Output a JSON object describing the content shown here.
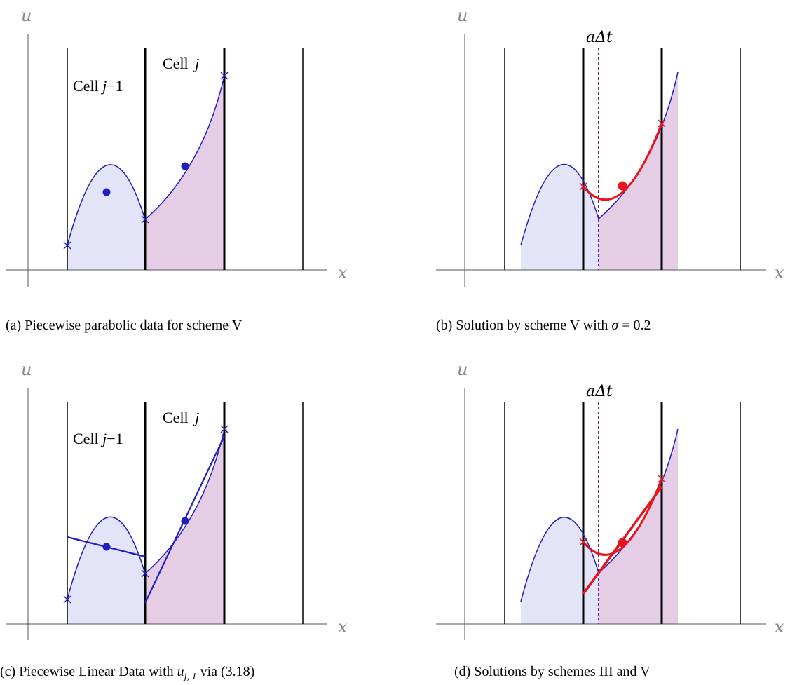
{
  "panels": [
    {
      "id": "a",
      "axis_x": "x",
      "axis_u": "u",
      "caption": "(a) Piecewise parabolic data for scheme V",
      "cell_labels": [
        {
          "text": "Cell ",
          "var": "j",
          "suffix": "−1"
        },
        {
          "text": "Cell ",
          "var": "j",
          "suffix": ""
        }
      ]
    },
    {
      "id": "b",
      "axis_x": "x",
      "axis_u": "u",
      "caption_prefix": "(b) Solution by scheme V with ",
      "caption_var": "σ",
      "caption_suffix": " = 0.2",
      "annotation": "aΔt"
    },
    {
      "id": "c",
      "axis_x": "x",
      "axis_u": "u",
      "caption_prefix": "(c) Piecewise Linear Data with ",
      "caption_var": "u",
      "caption_sub": "j, 1",
      "caption_suffix": " via (3.18)",
      "cell_labels": [
        {
          "text": "Cell ",
          "var": "j",
          "suffix": "−1"
        },
        {
          "text": "Cell ",
          "var": "j",
          "suffix": ""
        }
      ]
    },
    {
      "id": "d",
      "axis_x": "x",
      "axis_u": "u",
      "caption": "(d) Solutions by schemes III and V",
      "annotation": "aΔt"
    }
  ],
  "colors": {
    "blue": "#1f1fbf",
    "red": "#e8141c",
    "fill_left": "#e4e4f8",
    "fill_right": "#e6cde6",
    "purple_dash": "#7a1a8a",
    "axis": "#555555"
  }
}
